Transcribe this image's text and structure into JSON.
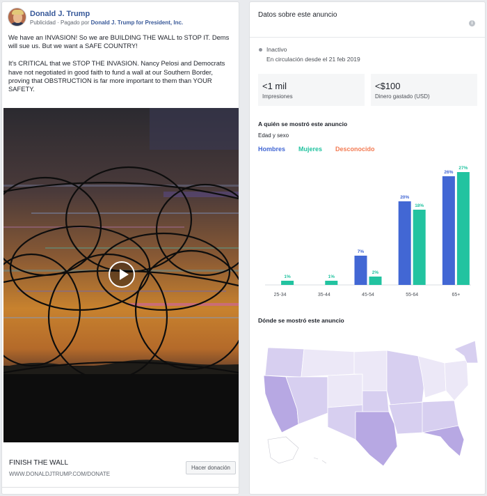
{
  "ad": {
    "page_name": "Donald J. Trump",
    "sponsored_label": "Publicidad",
    "paid_by_prefix": "Pagado por",
    "paid_by": "Donald J. Trump for President, Inc.",
    "text_p1": "We have an INVASION! So we are BUILDING THE WALL to STOP IT. Dems will sue us. But we want a SAFE COUNTRY!",
    "text_p2": "It's CRITICAL that we STOP THE INVASION. Nancy Pelosi and Democrats have not negotiated in good faith to fund a wall at our Southern Border, proving that OBSTRUCTION is far more important to them than YOUR SAFETY.",
    "cta_title": "FINISH THE WALL",
    "cta_url": "WWW.DONALDJTRUMP.COM/DONATE",
    "cta_button": "Hacer donación"
  },
  "info": {
    "title": "Datos sobre este anuncio",
    "status": "Inactivo",
    "circulation": "En circulación desde el 21 feb 2019",
    "impressions_value": "<1 mil",
    "impressions_label": "Impresiones",
    "spend_value": "<$100",
    "spend_label": "Dinero gastado (USD)",
    "audience_title": "A quién se mostró este anuncio",
    "age_gender_label": "Edad y sexo",
    "where_title": "Dónde se mostró este anuncio"
  },
  "colors": {
    "men": "#4267d4",
    "women": "#22c3a0",
    "unknown": "#f37b53",
    "map_light": "#ece8f7",
    "map_mid": "#d7cff0",
    "map_dark": "#b7a8e3"
  },
  "chart_data": {
    "type": "bar",
    "categories": [
      "25-34",
      "35-44",
      "45-54",
      "55-64",
      "65+"
    ],
    "series": [
      {
        "name": "Hombres",
        "values": [
          0,
          0,
          7,
          20,
          26
        ],
        "labels": [
          "",
          "",
          "7%",
          "20%",
          "26%"
        ]
      },
      {
        "name": "Mujeres",
        "values": [
          1,
          1,
          2,
          18,
          27
        ],
        "labels": [
          "1%",
          "1%",
          "2%",
          "18%",
          "27%"
        ]
      },
      {
        "name": "Desconocido",
        "values": [
          0,
          0,
          0,
          0,
          0
        ],
        "labels": [
          "",
          "",
          "",
          "",
          ""
        ]
      }
    ],
    "ylim": [
      0,
      28
    ],
    "legend": "top-left"
  }
}
